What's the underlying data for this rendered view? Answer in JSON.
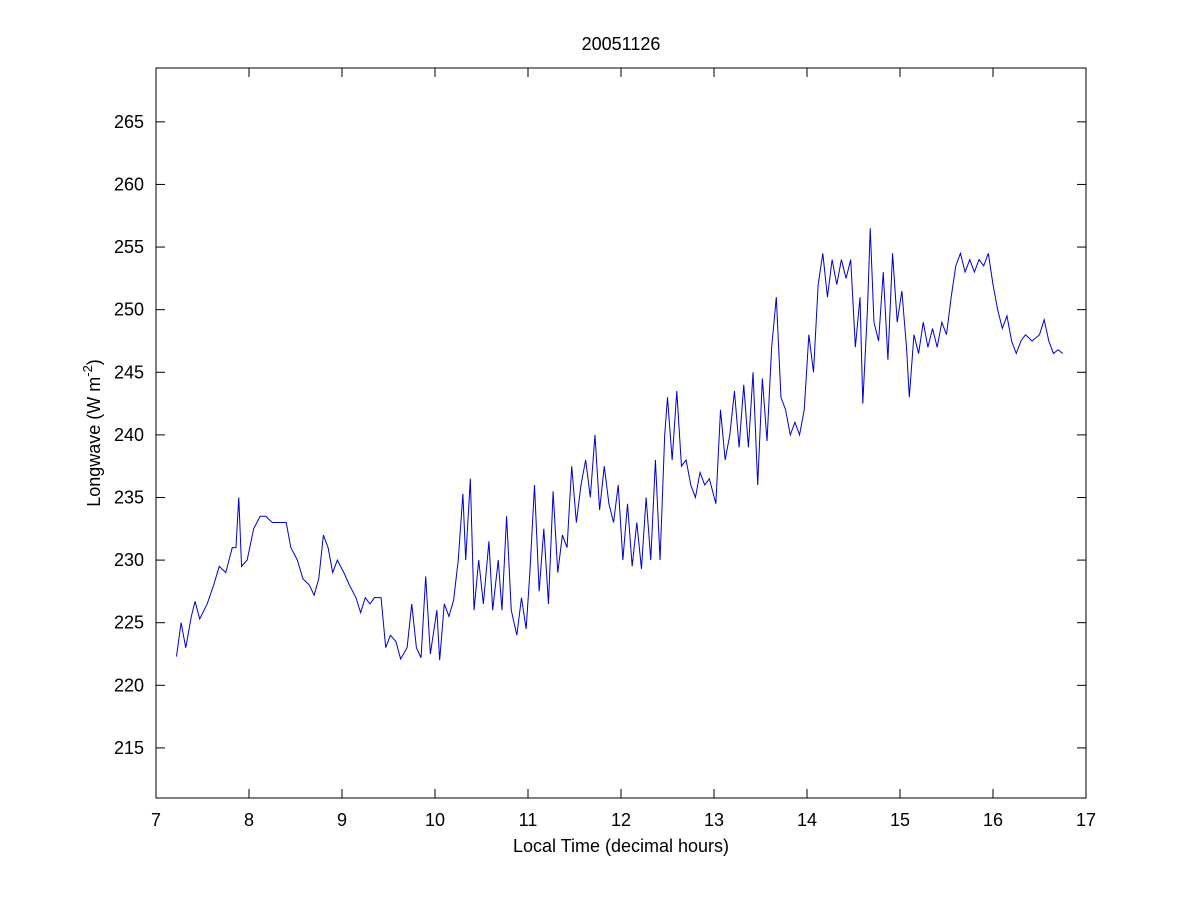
{
  "chart_data": {
    "type": "line",
    "title": "20051126",
    "xlabel": "Local Time (decimal hours)",
    "ylabel": {
      "text": "Longwave (W m",
      "superscript": "-2",
      "suffix": ")"
    },
    "xlim": [
      7,
      17
    ],
    "xticks": [
      7,
      8,
      9,
      10,
      11,
      12,
      13,
      14,
      15,
      16,
      17
    ],
    "ylim": [
      211,
      269.3
    ],
    "yticks": [
      215,
      220,
      225,
      230,
      235,
      240,
      245,
      250,
      255,
      260,
      265
    ],
    "grid": false,
    "x": [
      7.22,
      7.27,
      7.32,
      7.38,
      7.42,
      7.47,
      7.55,
      7.62,
      7.68,
      7.75,
      7.82,
      7.86,
      7.89,
      7.92,
      7.98,
      8.05,
      8.12,
      8.18,
      8.25,
      8.32,
      8.4,
      8.45,
      8.52,
      8.58,
      8.65,
      8.7,
      8.75,
      8.8,
      8.85,
      8.9,
      8.95,
      9.02,
      9.08,
      9.15,
      9.2,
      9.25,
      9.3,
      9.35,
      9.42,
      9.47,
      9.52,
      9.58,
      9.63,
      9.7,
      9.75,
      9.8,
      9.85,
      9.9,
      9.95,
      10.02,
      10.05,
      10.1,
      10.15,
      10.2,
      10.25,
      10.3,
      10.33,
      10.38,
      10.42,
      10.47,
      10.52,
      10.58,
      10.62,
      10.68,
      10.72,
      10.77,
      10.82,
      10.88,
      10.93,
      10.98,
      11.02,
      11.07,
      11.12,
      11.17,
      11.22,
      11.27,
      11.32,
      11.37,
      11.42,
      11.47,
      11.52,
      11.57,
      11.62,
      11.67,
      11.72,
      11.77,
      11.82,
      11.87,
      11.92,
      11.97,
      12.02,
      12.07,
      12.12,
      12.17,
      12.22,
      12.27,
      12.32,
      12.37,
      12.42,
      12.47,
      12.5,
      12.55,
      12.6,
      12.65,
      12.7,
      12.75,
      12.8,
      12.85,
      12.9,
      12.95,
      13.02,
      13.07,
      13.12,
      13.17,
      13.22,
      13.27,
      13.32,
      13.37,
      13.42,
      13.47,
      13.52,
      13.57,
      13.62,
      13.67,
      13.72,
      13.77,
      13.82,
      13.87,
      13.92,
      13.97,
      14.02,
      14.07,
      14.12,
      14.17,
      14.22,
      14.27,
      14.32,
      14.37,
      14.42,
      14.47,
      14.52,
      14.57,
      14.6,
      14.65,
      14.68,
      14.72,
      14.77,
      14.82,
      14.87,
      14.92,
      14.97,
      15.02,
      15.07,
      15.1,
      15.15,
      15.2,
      15.25,
      15.3,
      15.35,
      15.4,
      15.45,
      15.5,
      15.55,
      15.6,
      15.65,
      15.7,
      15.75,
      15.8,
      15.85,
      15.9,
      15.95,
      16.0,
      16.05,
      16.1,
      16.15,
      16.2,
      16.25,
      16.3,
      16.35,
      16.42,
      16.5,
      16.55,
      16.6,
      16.65,
      16.7,
      16.75
    ],
    "series": [
      {
        "color": "#0000cc",
        "values": [
          222.3,
          225,
          223,
          225.5,
          226.7,
          225.3,
          226.5,
          228,
          229.5,
          229,
          231,
          231,
          235,
          229.5,
          230,
          232.5,
          233.5,
          233.5,
          233,
          233,
          233,
          231,
          230,
          228.5,
          228,
          227.2,
          228.5,
          232,
          231,
          229,
          230,
          229,
          228,
          227,
          225.8,
          227,
          226.5,
          227,
          227,
          223,
          224,
          223.5,
          222.1,
          223,
          226.5,
          223,
          222.2,
          228.7,
          222.5,
          226,
          222,
          226.5,
          225.5,
          226.8,
          230,
          235.3,
          230,
          236.5,
          226,
          230,
          226.5,
          231.5,
          226,
          230,
          226,
          233.5,
          226,
          224,
          227,
          224.5,
          229,
          236,
          227.5,
          232.5,
          226.5,
          235.5,
          229,
          232,
          231,
          237.5,
          233,
          236,
          238,
          235,
          240,
          234,
          237.5,
          234.5,
          233,
          236,
          230,
          234.5,
          229.5,
          233,
          229.3,
          235,
          230,
          238,
          230,
          240,
          243,
          238,
          243.5,
          237.5,
          238,
          236,
          235,
          237,
          236,
          236.5,
          234.5,
          242,
          238,
          240,
          243.5,
          239,
          244,
          239,
          245,
          236,
          244.5,
          239.5,
          247,
          251,
          243,
          242,
          240,
          241,
          240,
          242,
          248,
          245,
          252,
          254.5,
          251,
          254,
          252,
          254,
          252.5,
          254,
          247,
          251,
          242.5,
          250,
          256.5,
          249,
          247.5,
          253,
          246,
          254.5,
          249,
          251.5,
          247,
          243,
          248,
          246.5,
          249,
          247,
          248.5,
          247,
          249,
          248,
          251,
          253.5,
          254.5,
          253,
          254,
          253,
          254,
          253.5,
          254.5,
          252,
          250,
          248.5,
          249.5,
          247.5,
          246.5,
          247.5,
          248,
          247.5,
          248,
          249.2,
          247.5,
          246.5,
          246.8,
          246.5
        ]
      }
    ]
  }
}
